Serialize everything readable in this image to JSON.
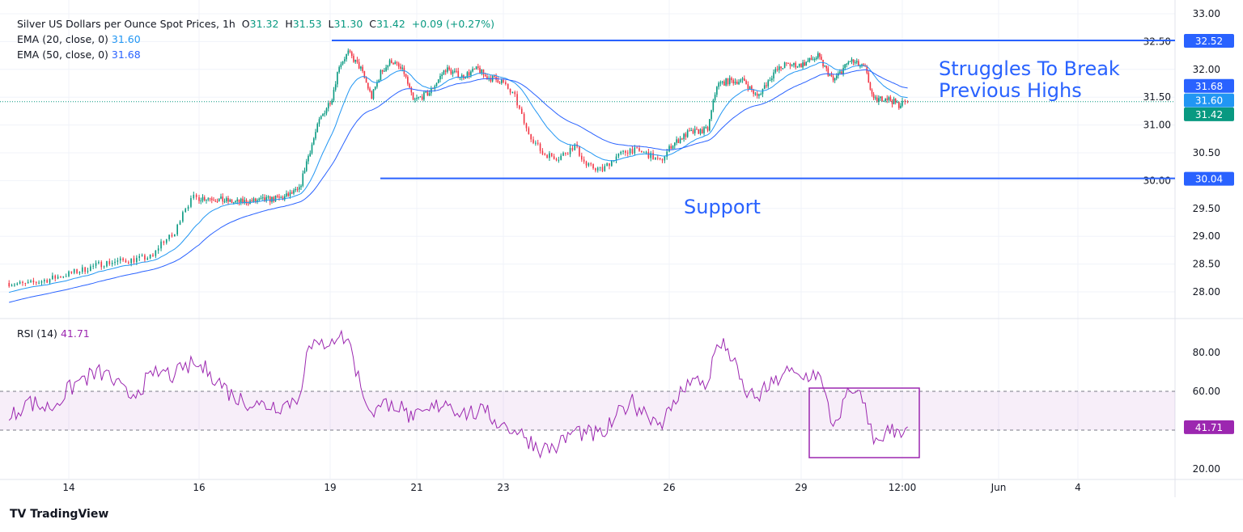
{
  "header": {
    "title": "Silver US Dollars per Ounce Spot Prices, 1h",
    "o_label": "O",
    "o": "31.32",
    "h_label": "H",
    "h": "31.53",
    "l_label": "L",
    "l": "31.30",
    "c_label": "C",
    "c": "31.42",
    "change": "+0.09 (+0.27%)"
  },
  "indicators": {
    "ema20_label": "EMA (20, close, 0)",
    "ema20_value": "31.60",
    "ema50_label": "EMA (50, close, 0)",
    "ema50_value": "31.68",
    "rsi_label": "RSI (14)",
    "rsi_value": "41.71"
  },
  "annotations": {
    "resistance_text_1": "Struggles To Break",
    "resistance_text_2": "Previous Highs",
    "support_text": "Support"
  },
  "price_labels": {
    "resistance": "32.52",
    "ema50": "31.68",
    "ema20": "31.60",
    "last": "31.42",
    "support": "30.04",
    "rsi_last": "41.71"
  },
  "colors": {
    "up": "#089981",
    "down": "#f23645",
    "ema20": "#2196f3",
    "ema50": "#2962ff",
    "rsi": "#9c27b0",
    "lines": "#2962ff"
  },
  "footer": {
    "brand": "TradingView"
  },
  "chart_data": [
    {
      "type": "candlestick",
      "title": "Silver US Dollars per Ounce Spot Prices, 1h",
      "ylim": [
        27.8,
        33.0
      ],
      "yticks": [
        "33.00",
        "32.50",
        "32.00",
        "31.50",
        "31.00",
        "30.50",
        "30.00",
        "29.50",
        "29.00",
        "28.50",
        "28.00"
      ],
      "xticks": [
        "14",
        "16",
        "19",
        "21",
        "23",
        "26",
        "29",
        "12:00",
        "Jun",
        "4"
      ],
      "horizontal_lines": [
        {
          "value": 32.52
        },
        {
          "value": 30.04
        }
      ],
      "close_path": [
        [
          "05-13 02:00",
          28.16
        ],
        [
          "05-13 08:00",
          28.13
        ],
        [
          "05-13 17:00",
          28.23
        ],
        [
          "05-14 04:00",
          28.38
        ],
        [
          "05-14 13:00",
          28.52
        ],
        [
          "05-14 22:00",
          28.57
        ],
        [
          "05-15 07:00",
          28.63
        ],
        [
          "05-15 10:00",
          28.89
        ],
        [
          "05-15 15:00",
          29.03
        ],
        [
          "05-15 18:00",
          29.47
        ],
        [
          "05-15 22:00",
          29.69
        ],
        [
          "05-16 06:00",
          29.69
        ],
        [
          "05-16 19:00",
          29.61
        ],
        [
          "05-17 09:00",
          29.64
        ],
        [
          "05-17 22:00",
          29.69
        ],
        [
          "05-18 07:00",
          29.83
        ],
        [
          "05-18 11:00",
          30.34
        ],
        [
          "05-18 18:00",
          31.07
        ],
        [
          "05-19 01:00",
          31.5
        ],
        [
          "05-19 05:00",
          32.08
        ],
        [
          "05-19 10:00",
          32.3
        ],
        [
          "05-19 17:00",
          32.01
        ],
        [
          "05-19 23:00",
          31.5
        ],
        [
          "05-20 04:00",
          31.94
        ],
        [
          "05-20 10:00",
          32.16
        ],
        [
          "05-20 17:00",
          31.94
        ],
        [
          "05-20 22:00",
          31.43
        ],
        [
          "05-21 07:00",
          31.58
        ],
        [
          "05-21 16:00",
          32.01
        ],
        [
          "05-22 01:00",
          31.87
        ],
        [
          "05-22 10:00",
          32.01
        ],
        [
          "05-22 14:00",
          31.87
        ],
        [
          "05-22 23:00",
          31.79
        ],
        [
          "05-23 05:00",
          31.5
        ],
        [
          "05-23 10:00",
          30.92
        ],
        [
          "05-23 17:00",
          30.49
        ],
        [
          "05-24 00:00",
          30.41
        ],
        [
          "05-24 07:00",
          30.63
        ],
        [
          "05-24 12:00",
          30.27
        ],
        [
          "05-24 19:00",
          30.19
        ],
        [
          "05-25 00:00",
          30.41
        ],
        [
          "05-25 07:00",
          30.56
        ],
        [
          "05-25 14:00",
          30.49
        ],
        [
          "05-25 20:00",
          30.34
        ],
        [
          "05-26 01:00",
          30.63
        ],
        [
          "05-26 10:00",
          30.85
        ],
        [
          "05-26 21:00",
          30.92
        ],
        [
          "05-27 02:00",
          31.72
        ],
        [
          "05-27 08:00",
          31.79
        ],
        [
          "05-27 17:00",
          31.79
        ],
        [
          "05-28 00:00",
          31.5
        ],
        [
          "05-28 09:00",
          31.94
        ],
        [
          "05-28 15:00",
          32.08
        ],
        [
          "05-29 00:00",
          32.08
        ],
        [
          "05-29 10:00",
          32.23
        ],
        [
          "05-29 19:00",
          31.79
        ],
        [
          "05-30 05:00",
          32.16
        ],
        [
          "05-30 14:00",
          32.01
        ],
        [
          "05-30 19:00",
          31.43
        ],
        [
          "05-31 02:00",
          31.5
        ],
        [
          "05-31 10:00",
          31.36
        ],
        [
          "05-31 14:00",
          31.42
        ]
      ]
    },
    {
      "type": "line",
      "title": "RSI (14)",
      "ylim": [
        14,
        94
      ],
      "yticks": [
        "80.00",
        "60.00",
        "20.00"
      ],
      "band": [
        40,
        60
      ],
      "values": [
        45,
        55,
        51,
        66,
        70,
        57,
        68,
        70,
        68,
        71,
        74,
        70,
        57,
        53,
        53,
        57,
        80,
        84,
        87,
        88,
        87,
        62,
        49,
        52,
        55,
        50,
        45,
        50,
        55,
        49,
        49,
        49,
        43,
        40,
        36,
        30,
        32,
        40,
        38,
        37,
        45,
        55,
        49,
        44,
        50,
        66,
        64,
        84,
        82,
        60,
        57,
        64,
        70,
        67,
        70,
        42,
        60,
        54,
        33,
        39,
        40,
        41.71
      ]
    }
  ]
}
